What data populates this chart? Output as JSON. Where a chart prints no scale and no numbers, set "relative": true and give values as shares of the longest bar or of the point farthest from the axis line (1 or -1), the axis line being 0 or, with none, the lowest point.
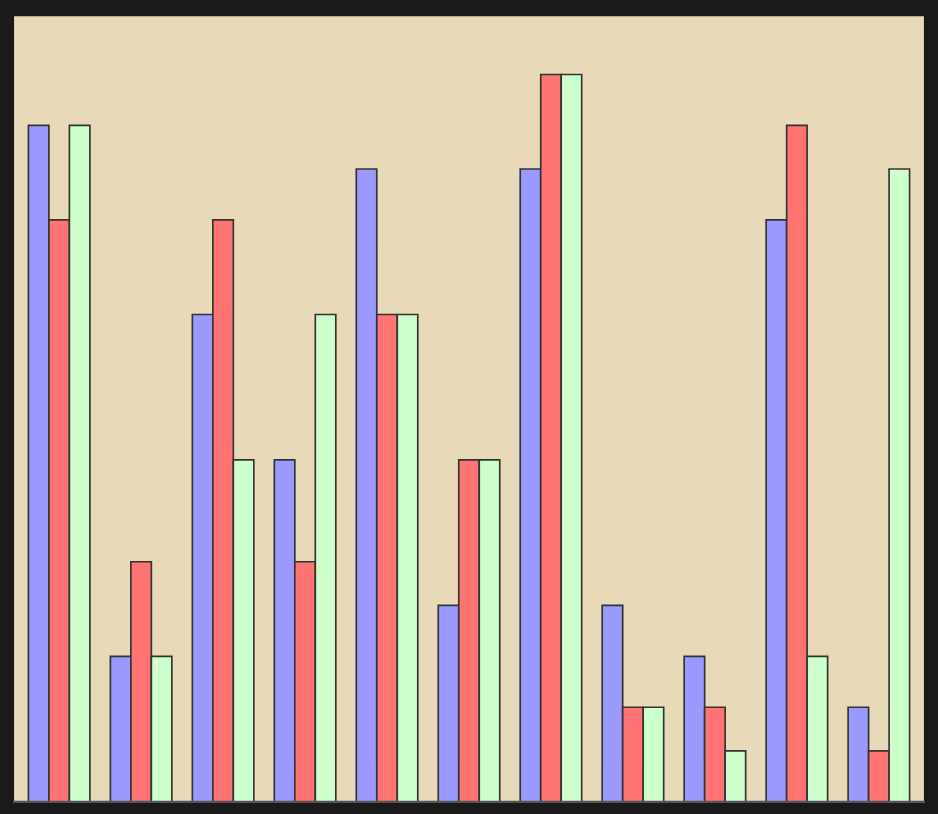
{
  "chart_data": {
    "type": "bar",
    "relative": true,
    "categories": [
      null,
      null,
      null,
      null,
      null,
      null,
      null,
      null,
      null,
      null,
      null
    ],
    "series": [
      {
        "color": "#9999ff",
        "values": [
          0.93,
          0.2,
          0.67,
          0.47,
          0.87,
          0.27,
          0.87,
          0.27,
          0.2,
          0.8,
          0.13
        ]
      },
      {
        "color": "#ff7373",
        "values": [
          0.8,
          0.33,
          0.8,
          0.33,
          0.67,
          0.47,
          1,
          0.13,
          0.13,
          0.93,
          0.07
        ]
      },
      {
        "color": "#ccffcc",
        "values": [
          0.93,
          0.2,
          0.47,
          0.67,
          0.67,
          0.47,
          1,
          0.13,
          0.07,
          0.2,
          0.87
        ]
      }
    ],
    "grid": false
  }
}
